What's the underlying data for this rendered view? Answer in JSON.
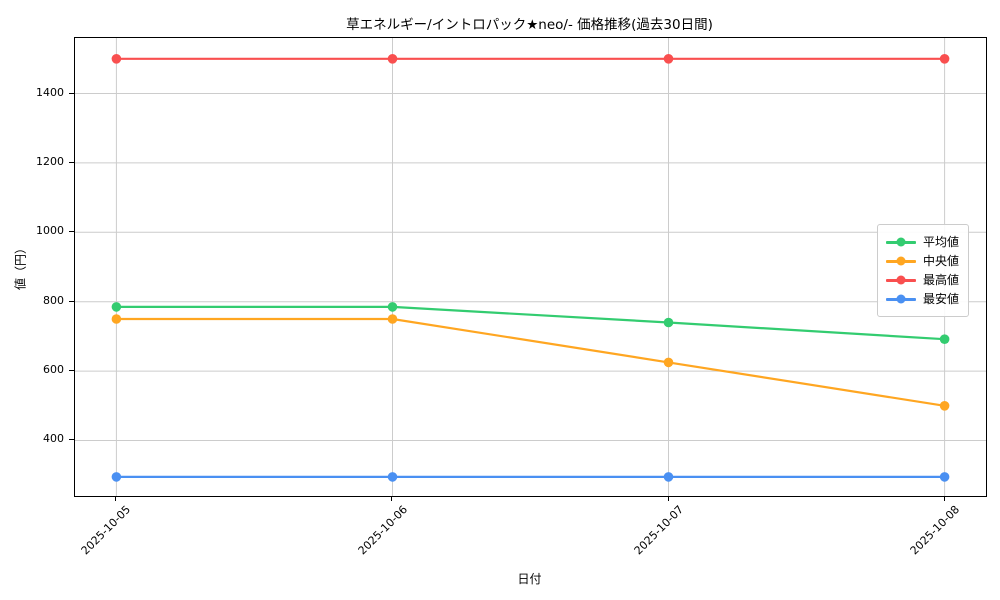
{
  "title": "草エネルギー/イントロパック★neo/- 価格推移(過去30日間)",
  "chart_data": {
    "type": "line",
    "title": "草エネルギー/イントロパック★neo/- 価格推移(過去30日間)",
    "x": [
      "2025-10-05",
      "2025-10-06",
      "2025-10-07",
      "2025-10-08"
    ],
    "series": [
      {
        "name": "平均値",
        "color": "#33cc70",
        "values": [
          785,
          785,
          740,
          692
        ]
      },
      {
        "name": "中央値",
        "color": "#ffa621",
        "values": [
          750,
          750,
          625,
          500
        ]
      },
      {
        "name": "最高値",
        "color": "#f94f4f",
        "values": [
          1500,
          1500,
          1500,
          1500
        ]
      },
      {
        "name": "最安値",
        "color": "#4a90f2",
        "values": [
          295,
          295,
          295,
          295
        ]
      }
    ],
    "xlabel": "日付",
    "ylabel": "値（円）",
    "yticks": [
      400,
      600,
      800,
      1000,
      1200,
      1400
    ],
    "ylim": [
      240,
      1560
    ],
    "grid": true,
    "grid_color": "#cccccc",
    "legend_position": "center-right"
  }
}
